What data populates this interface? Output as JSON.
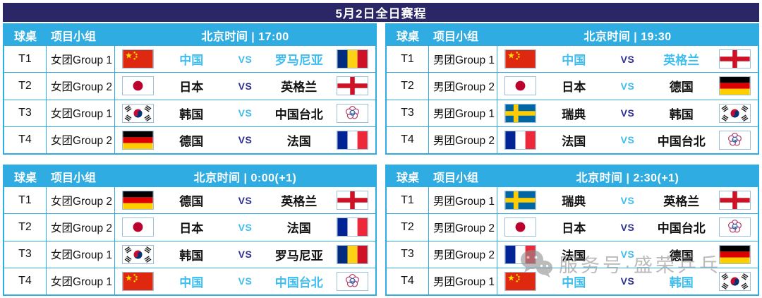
{
  "title": "5月2日全日赛程",
  "vs_label": "VS",
  "headers": {
    "table_col": "球桌",
    "group_col": "项目小组",
    "time_prefix": "北京时间"
  },
  "watermark": {
    "icon": "wechat-icon",
    "text": "服务号·盛荣乒乓"
  },
  "colors": {
    "banner_bg": "#2B2767",
    "header_bg": "#2FACE2",
    "highlight_text": "#3EBDEE",
    "vs_dark": "#2E3192",
    "table_border": "#2FACE2",
    "watermark_gray": "#8E8E8E"
  },
  "tables": [
    {
      "time_header": "北京时间 | 17:00",
      "rows": [
        {
          "no": "T1",
          "group": "女团Group 1",
          "flag1": "cn",
          "team1": "中国",
          "vs": "cyan",
          "team2": "罗马尼亚",
          "flag2": "ro",
          "highlight": true
        },
        {
          "no": "T2",
          "group": "女团Group 2",
          "flag1": "jp",
          "team1": "日本",
          "vs": "dark",
          "team2": "英格兰",
          "flag2": "en",
          "highlight": false
        },
        {
          "no": "T3",
          "group": "女团Group 1",
          "flag1": "kr",
          "team1": "韩国",
          "vs": "cyan",
          "team2": "中国台北",
          "flag2": "tw",
          "highlight": false
        },
        {
          "no": "T4",
          "group": "女团Group 2",
          "flag1": "de",
          "team1": "德国",
          "vs": "dark",
          "team2": "法国",
          "flag2": "fr",
          "highlight": false
        }
      ]
    },
    {
      "time_header": "北京时间 | 19:30",
      "rows": [
        {
          "no": "T1",
          "group": "男团Group 1",
          "flag1": "cn",
          "team1": "中国",
          "vs": "dark",
          "team2": "英格兰",
          "flag2": "en",
          "highlight": true
        },
        {
          "no": "T2",
          "group": "男团Group 2",
          "flag1": "jp",
          "team1": "日本",
          "vs": "cyan",
          "team2": "德国",
          "flag2": "de",
          "highlight": false
        },
        {
          "no": "T3",
          "group": "男团Group 1",
          "flag1": "se",
          "team1": "瑞典",
          "vs": "dark",
          "team2": "韩国",
          "flag2": "kr",
          "highlight": false
        },
        {
          "no": "T4",
          "group": "男团Group 2",
          "flag1": "fr",
          "team1": "法国",
          "vs": "cyan",
          "team2": "中国台北",
          "flag2": "tw",
          "highlight": false
        }
      ]
    },
    {
      "time_header": "北京时间 | 0:00(+1)",
      "rows": [
        {
          "no": "T1",
          "group": "女团Group 2",
          "flag1": "de",
          "team1": "德国",
          "vs": "dark",
          "team2": "英格兰",
          "flag2": "en",
          "highlight": false
        },
        {
          "no": "T2",
          "group": "女团Group 2",
          "flag1": "jp",
          "team1": "日本",
          "vs": "cyan",
          "team2": "法国",
          "flag2": "fr",
          "highlight": false
        },
        {
          "no": "T3",
          "group": "女团Group 1",
          "flag1": "kr",
          "team1": "韩国",
          "vs": "dark",
          "team2": "罗马尼亚",
          "flag2": "ro",
          "highlight": false
        },
        {
          "no": "T4",
          "group": "女团Group 1",
          "flag1": "cn",
          "team1": "中国",
          "vs": "cyan",
          "team2": "中国台北",
          "flag2": "tw",
          "highlight": true
        }
      ]
    },
    {
      "time_header": "北京时间 | 2:30(+1)",
      "rows": [
        {
          "no": "T1",
          "group": "男团Group 1",
          "flag1": "se",
          "team1": "瑞典",
          "vs": "cyan",
          "team2": "英格兰",
          "flag2": "en",
          "highlight": false
        },
        {
          "no": "T2",
          "group": "男团Group 2",
          "flag1": "jp",
          "team1": "日本",
          "vs": "dark",
          "team2": "中国台北",
          "flag2": "tw",
          "highlight": false
        },
        {
          "no": "T3",
          "group": "男团Group 2",
          "flag1": "fr",
          "team1": "法国",
          "vs": "cyan",
          "team2": "德国",
          "flag2": "de",
          "highlight": false
        },
        {
          "no": "T4",
          "group": "男团Group 1",
          "flag1": "cn",
          "team1": "中国",
          "vs": "dark",
          "team2": "韩国",
          "flag2": "kr",
          "highlight": true
        }
      ]
    }
  ]
}
